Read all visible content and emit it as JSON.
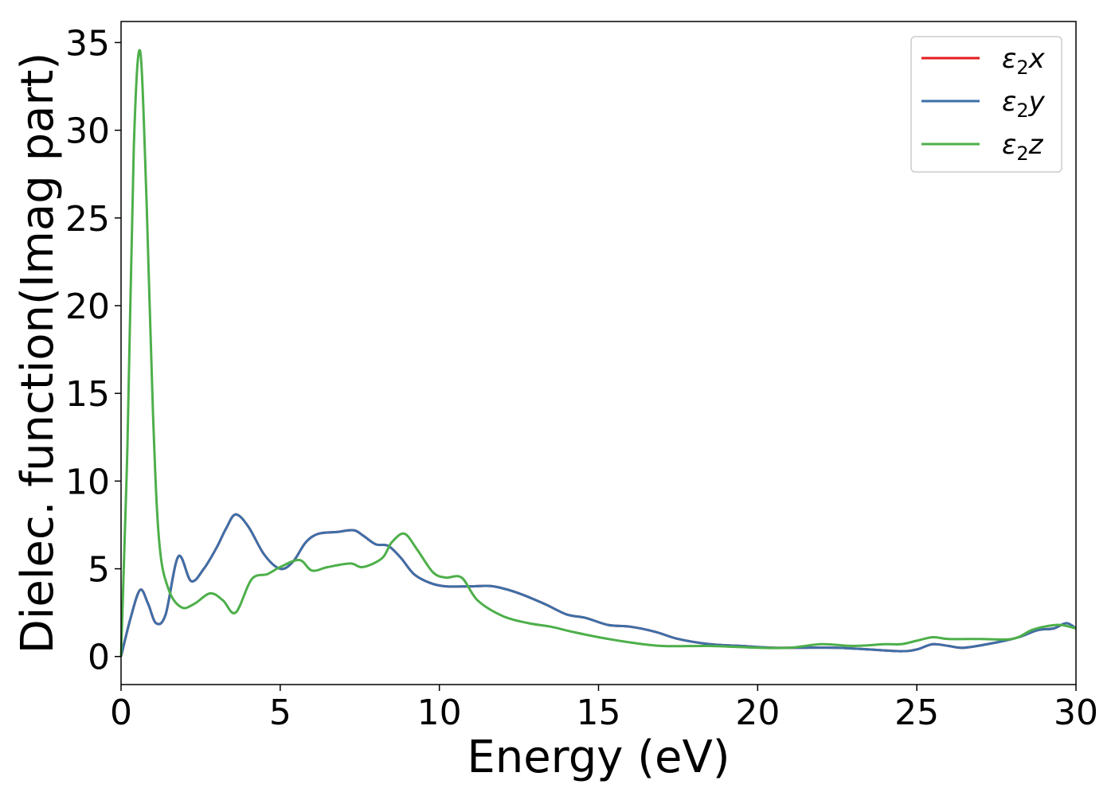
{
  "chart_data": {
    "type": "line",
    "xlabel": "Energy (eV)",
    "ylabel": "Dielec. function(Imag part)",
    "xlim": [
      0,
      30
    ],
    "ylim": [
      -1.6,
      36.2
    ],
    "xticks": [
      0,
      5,
      10,
      15,
      20,
      25,
      30
    ],
    "yticks": [
      0,
      5,
      10,
      15,
      20,
      25,
      30,
      35
    ],
    "grid": false,
    "legend_position": "top-right",
    "series": [
      {
        "name": "ε2x",
        "legend_base": "ε",
        "legend_sub": "2",
        "legend_var": "x",
        "color": "#e41a1c",
        "x": [
          0,
          0.3,
          0.6,
          0.85,
          1.1,
          1.4,
          1.8,
          2.2,
          2.6,
          3.0,
          3.3,
          3.6,
          4.0,
          4.5,
          5.0,
          5.4,
          5.8,
          6.2,
          6.8,
          7.3,
          7.6,
          8.0,
          8.4,
          8.8,
          9.2,
          9.7,
          10.2,
          11.0,
          11.7,
          12.5,
          13.3,
          14.0,
          14.6,
          15.3,
          16.0,
          16.8,
          17.5,
          18.5,
          19.5,
          20.5,
          21.5,
          22.5,
          23.5,
          24.5,
          25.0,
          25.5,
          26.0,
          26.5,
          27.5,
          28.2,
          28.8,
          29.3,
          29.7,
          30.0
        ],
        "values": [
          0,
          2.2,
          3.8,
          3.0,
          1.9,
          2.4,
          5.7,
          4.3,
          5.0,
          6.2,
          7.3,
          8.1,
          7.4,
          5.8,
          5.0,
          5.4,
          6.5,
          7.0,
          7.1,
          7.2,
          6.9,
          6.4,
          6.3,
          5.6,
          4.7,
          4.2,
          4.0,
          4.0,
          4.0,
          3.6,
          3.0,
          2.4,
          2.2,
          1.8,
          1.7,
          1.4,
          1.0,
          0.7,
          0.6,
          0.5,
          0.5,
          0.5,
          0.4,
          0.3,
          0.4,
          0.7,
          0.6,
          0.5,
          0.8,
          1.1,
          1.5,
          1.6,
          1.9,
          1.6
        ]
      },
      {
        "name": "ε2y",
        "legend_base": "ε",
        "legend_sub": "2",
        "legend_var": "y",
        "color": "#3d6fa8",
        "x": [
          0,
          0.3,
          0.6,
          0.85,
          1.1,
          1.4,
          1.8,
          2.2,
          2.6,
          3.0,
          3.3,
          3.6,
          4.0,
          4.5,
          5.0,
          5.4,
          5.8,
          6.2,
          6.8,
          7.3,
          7.6,
          8.0,
          8.4,
          8.8,
          9.2,
          9.7,
          10.2,
          11.0,
          11.7,
          12.5,
          13.3,
          14.0,
          14.6,
          15.3,
          16.0,
          16.8,
          17.5,
          18.5,
          19.5,
          20.5,
          21.5,
          22.5,
          23.5,
          24.5,
          25.0,
          25.5,
          26.0,
          26.5,
          27.5,
          28.2,
          28.8,
          29.3,
          29.7,
          30.0
        ],
        "values": [
          0,
          2.2,
          3.8,
          3.0,
          1.9,
          2.4,
          5.7,
          4.3,
          5.0,
          6.2,
          7.3,
          8.1,
          7.4,
          5.8,
          5.0,
          5.4,
          6.5,
          7.0,
          7.1,
          7.2,
          6.9,
          6.4,
          6.3,
          5.6,
          4.7,
          4.2,
          4.0,
          4.0,
          4.0,
          3.6,
          3.0,
          2.4,
          2.2,
          1.8,
          1.7,
          1.4,
          1.0,
          0.7,
          0.6,
          0.5,
          0.5,
          0.5,
          0.4,
          0.3,
          0.4,
          0.7,
          0.6,
          0.5,
          0.8,
          1.1,
          1.5,
          1.6,
          1.9,
          1.6
        ]
      },
      {
        "name": "ε2z",
        "legend_base": "ε",
        "legend_sub": "2",
        "legend_var": "z",
        "color": "#4daf4a",
        "x": [
          0,
          0.2,
          0.4,
          0.6,
          0.8,
          1.0,
          1.2,
          1.5,
          1.9,
          2.3,
          2.8,
          3.2,
          3.6,
          4.1,
          4.6,
          5.0,
          5.6,
          6.0,
          6.5,
          7.2,
          7.6,
          8.2,
          8.5,
          8.9,
          9.3,
          9.8,
          10.2,
          10.7,
          11.2,
          12.0,
          12.8,
          13.5,
          14.2,
          15.0,
          16.0,
          17.0,
          18.5,
          20.0,
          21.0,
          22.0,
          23.0,
          24.0,
          24.5,
          25.0,
          25.5,
          26.0,
          27.0,
          28.0,
          28.6,
          29.0,
          29.5,
          30.0
        ],
        "values": [
          0,
          12.0,
          29.0,
          34.5,
          26.0,
          14.0,
          6.5,
          3.8,
          2.8,
          3.0,
          3.6,
          3.2,
          2.5,
          4.4,
          4.7,
          5.1,
          5.5,
          4.9,
          5.1,
          5.3,
          5.1,
          5.6,
          6.5,
          7.0,
          6.1,
          4.8,
          4.5,
          4.5,
          3.2,
          2.3,
          1.9,
          1.7,
          1.4,
          1.1,
          0.8,
          0.6,
          0.6,
          0.5,
          0.5,
          0.7,
          0.6,
          0.7,
          0.7,
          0.9,
          1.1,
          1.0,
          1.0,
          1.0,
          1.5,
          1.7,
          1.8,
          1.6
        ]
      }
    ]
  }
}
